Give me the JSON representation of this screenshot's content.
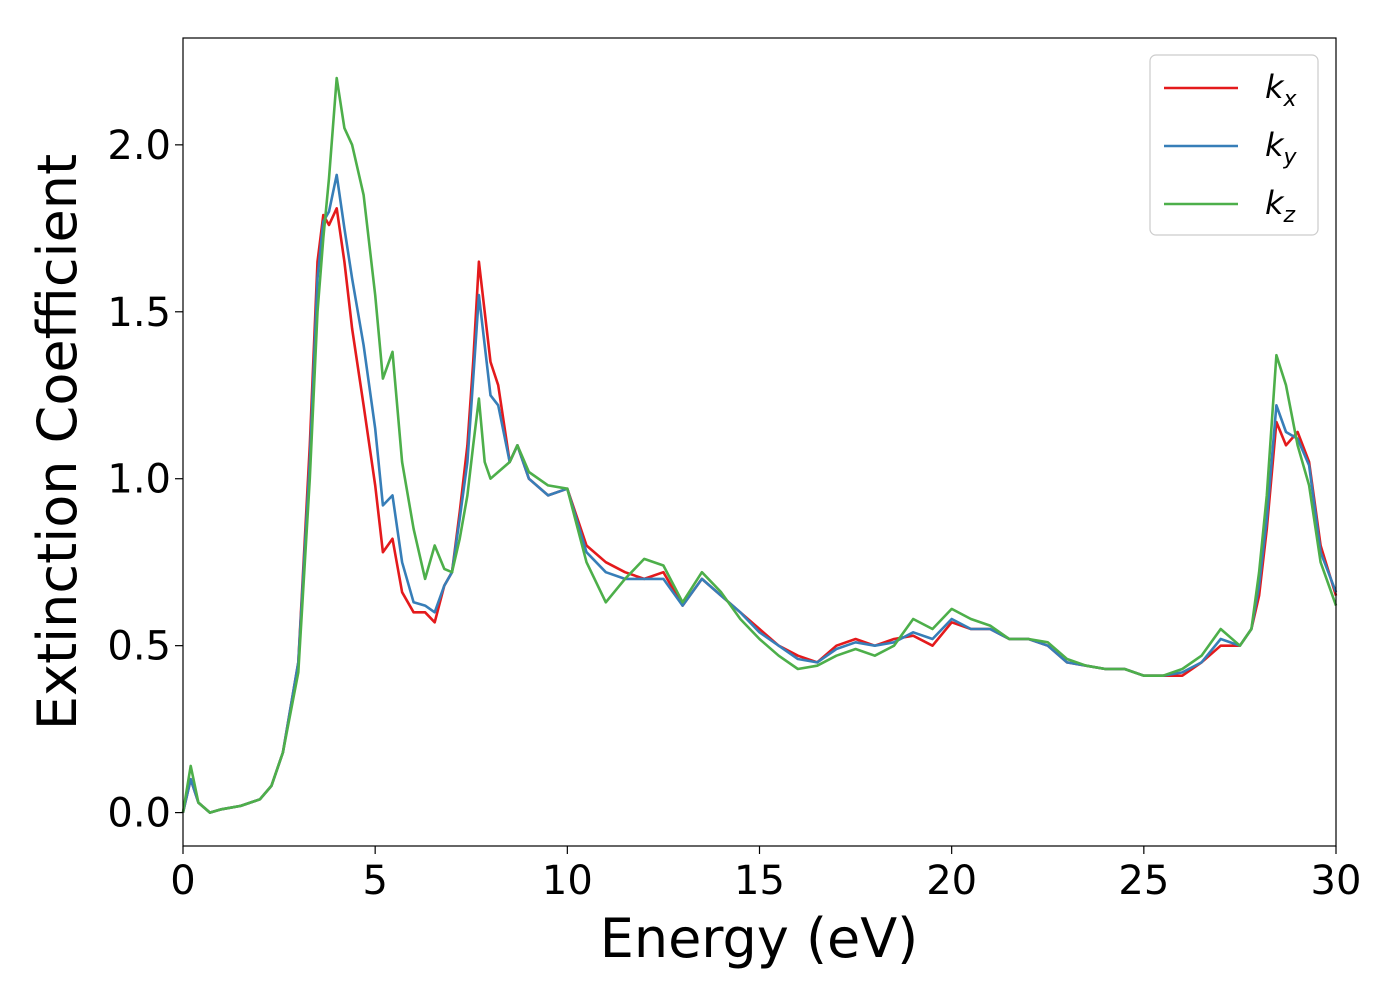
{
  "chart_data": {
    "type": "line",
    "xlabel": "Energy (eV)",
    "ylabel": "Extinction Coefficient",
    "xlim": [
      0,
      30
    ],
    "ylim": [
      -0.1,
      2.32
    ],
    "xticks": [
      0,
      5,
      10,
      15,
      20,
      25,
      30
    ],
    "xtick_labels": [
      "0",
      "5",
      "10",
      "15",
      "20",
      "25",
      "30"
    ],
    "yticks": [
      0.0,
      0.5,
      1.0,
      1.5,
      2.0
    ],
    "ytick_labels": [
      "0.0",
      "0.5",
      "1.0",
      "1.5",
      "2.0"
    ],
    "grid": false,
    "legend_position": "top-right",
    "series": [
      {
        "name": "k",
        "subscript": "x",
        "color": "#e41a1c",
        "x": [
          0,
          0.2,
          0.4,
          0.7,
          1,
          1.5,
          2,
          2.3,
          2.6,
          3,
          3.3,
          3.5,
          3.65,
          3.8,
          4,
          4.2,
          4.4,
          4.7,
          5,
          5.2,
          5.45,
          5.7,
          6,
          6.3,
          6.55,
          6.8,
          7,
          7.2,
          7.4,
          7.55,
          7.7,
          7.85,
          8,
          8.2,
          8.5,
          8.7,
          9,
          9.5,
          10,
          10.5,
          11,
          11.5,
          12,
          12.5,
          13,
          13.5,
          14,
          14.5,
          15,
          15.5,
          16,
          16.5,
          17,
          17.5,
          18,
          18.5,
          19,
          19.5,
          20,
          20.5,
          21,
          21.5,
          22,
          22.5,
          23,
          23.5,
          24,
          24.5,
          25,
          25.5,
          26,
          26.5,
          27,
          27.5,
          27.8,
          28,
          28.2,
          28.45,
          28.7,
          29,
          29.3,
          29.6,
          30
        ],
        "y": [
          0,
          0.1,
          0.03,
          0,
          0.01,
          0.02,
          0.04,
          0.08,
          0.18,
          0.45,
          1.1,
          1.65,
          1.79,
          1.76,
          1.81,
          1.65,
          1.45,
          1.22,
          0.98,
          0.78,
          0.82,
          0.66,
          0.6,
          0.6,
          0.57,
          0.68,
          0.72,
          0.9,
          1.1,
          1.35,
          1.65,
          1.5,
          1.35,
          1.28,
          1.05,
          1.1,
          1,
          0.95,
          0.97,
          0.8,
          0.75,
          0.72,
          0.7,
          0.72,
          0.62,
          0.7,
          0.65,
          0.6,
          0.55,
          0.5,
          0.47,
          0.45,
          0.5,
          0.52,
          0.5,
          0.52,
          0.53,
          0.5,
          0.57,
          0.55,
          0.55,
          0.52,
          0.52,
          0.5,
          0.45,
          0.44,
          0.43,
          0.43,
          0.41,
          0.41,
          0.41,
          0.45,
          0.5,
          0.5,
          0.55,
          0.65,
          0.85,
          1.17,
          1.1,
          1.14,
          1.05,
          0.8,
          0.65
        ]
      },
      {
        "name": "k",
        "subscript": "y",
        "color": "#377eb8",
        "x": [
          0,
          0.2,
          0.4,
          0.7,
          1,
          1.5,
          2,
          2.3,
          2.6,
          3,
          3.3,
          3.5,
          3.65,
          3.8,
          4,
          4.2,
          4.4,
          4.7,
          5,
          5.2,
          5.45,
          5.7,
          6,
          6.3,
          6.55,
          6.8,
          7,
          7.2,
          7.4,
          7.55,
          7.7,
          7.85,
          8,
          8.2,
          8.5,
          8.7,
          9,
          9.5,
          10,
          10.5,
          11,
          11.5,
          12,
          12.5,
          13,
          13.5,
          14,
          14.5,
          15,
          15.5,
          16,
          16.5,
          17,
          17.5,
          18,
          18.5,
          19,
          19.5,
          20,
          20.5,
          21,
          21.5,
          22,
          22.5,
          23,
          23.5,
          24,
          24.5,
          25,
          25.5,
          26,
          26.5,
          27,
          27.5,
          27.8,
          28,
          28.2,
          28.45,
          28.7,
          29,
          29.3,
          29.6,
          30
        ],
        "y": [
          0,
          0.1,
          0.03,
          0,
          0.01,
          0.02,
          0.04,
          0.08,
          0.18,
          0.45,
          1.05,
          1.6,
          1.77,
          1.8,
          1.91,
          1.75,
          1.6,
          1.4,
          1.15,
          0.92,
          0.95,
          0.75,
          0.63,
          0.62,
          0.6,
          0.68,
          0.72,
          0.88,
          1.05,
          1.3,
          1.55,
          1.4,
          1.25,
          1.22,
          1.05,
          1.1,
          1,
          0.95,
          0.97,
          0.78,
          0.72,
          0.7,
          0.7,
          0.7,
          0.62,
          0.7,
          0.65,
          0.6,
          0.54,
          0.5,
          0.46,
          0.45,
          0.49,
          0.51,
          0.5,
          0.51,
          0.54,
          0.52,
          0.58,
          0.55,
          0.55,
          0.52,
          0.52,
          0.5,
          0.45,
          0.44,
          0.43,
          0.43,
          0.41,
          0.41,
          0.42,
          0.45,
          0.52,
          0.5,
          0.55,
          0.68,
          0.88,
          1.22,
          1.14,
          1.12,
          1.04,
          0.78,
          0.66
        ]
      },
      {
        "name": "k",
        "subscript": "z",
        "color": "#4daf4a",
        "x": [
          0,
          0.2,
          0.4,
          0.7,
          1,
          1.5,
          2,
          2.3,
          2.6,
          3,
          3.3,
          3.5,
          3.65,
          3.8,
          4,
          4.2,
          4.4,
          4.7,
          5,
          5.2,
          5.45,
          5.7,
          6,
          6.3,
          6.55,
          6.8,
          7,
          7.2,
          7.4,
          7.55,
          7.7,
          7.85,
          8,
          8.2,
          8.5,
          8.7,
          9,
          9.5,
          10,
          10.5,
          11,
          11.5,
          12,
          12.5,
          13,
          13.5,
          14,
          14.5,
          15,
          15.5,
          16,
          16.5,
          17,
          17.5,
          18,
          18.5,
          19,
          19.5,
          20,
          20.5,
          21,
          21.5,
          22,
          22.5,
          23,
          23.5,
          24,
          24.5,
          25,
          25.5,
          26,
          26.5,
          27,
          27.5,
          27.8,
          28,
          28.2,
          28.45,
          28.7,
          29,
          29.3,
          29.6,
          30
        ],
        "y": [
          0,
          0.14,
          0.03,
          0,
          0.01,
          0.02,
          0.04,
          0.08,
          0.18,
          0.42,
          1,
          1.5,
          1.72,
          1.9,
          2.2,
          2.05,
          2,
          1.85,
          1.55,
          1.3,
          1.38,
          1.05,
          0.85,
          0.7,
          0.8,
          0.73,
          0.72,
          0.82,
          0.95,
          1.1,
          1.24,
          1.05,
          1,
          1.02,
          1.05,
          1.1,
          1.02,
          0.98,
          0.97,
          0.75,
          0.63,
          0.7,
          0.76,
          0.74,
          0.63,
          0.72,
          0.66,
          0.58,
          0.52,
          0.47,
          0.43,
          0.44,
          0.47,
          0.49,
          0.47,
          0.5,
          0.58,
          0.55,
          0.61,
          0.58,
          0.56,
          0.52,
          0.52,
          0.51,
          0.46,
          0.44,
          0.43,
          0.43,
          0.41,
          0.41,
          0.43,
          0.47,
          0.55,
          0.5,
          0.55,
          0.72,
          0.95,
          1.37,
          1.28,
          1.1,
          0.98,
          0.75,
          0.62
        ]
      }
    ]
  }
}
